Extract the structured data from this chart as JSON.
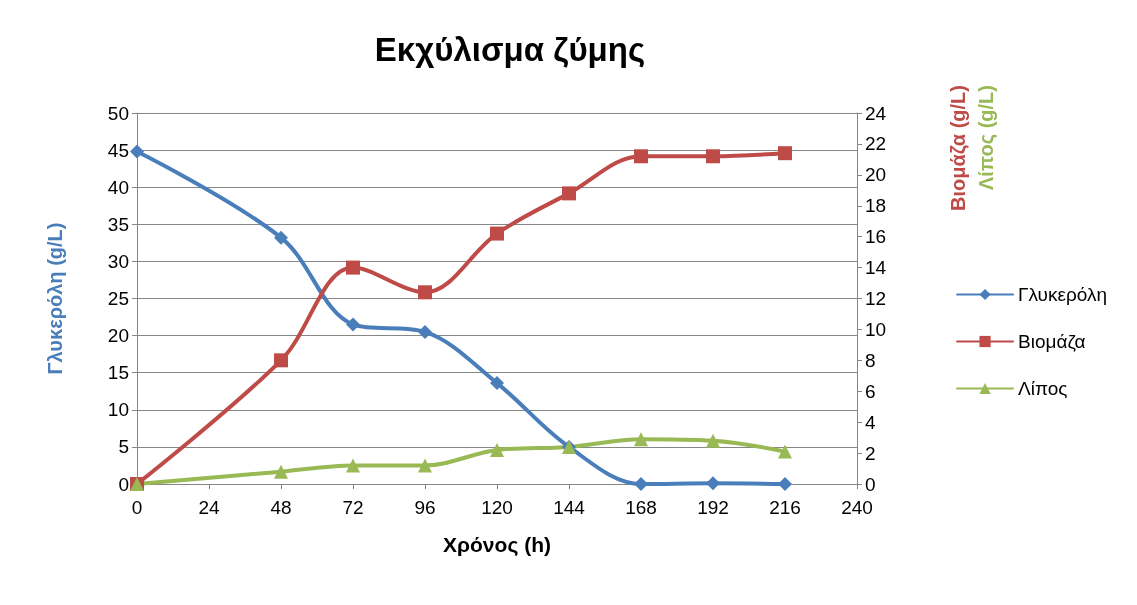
{
  "chart_data": {
    "type": "line",
    "title": "Εκχύλισμα ζύμης",
    "xlabel": "Χρόνος (h)",
    "ylabel": "Γλυκερόλη (g/L)",
    "y2label": "Βιομάζα (g/L)",
    "annotations": [
      "Λίπος (g/L)"
    ],
    "x": [
      0,
      48,
      72,
      96,
      120,
      144,
      168,
      192,
      216
    ],
    "xlim": [
      0,
      240
    ],
    "xticks": [
      0,
      24,
      48,
      72,
      96,
      120,
      144,
      168,
      192,
      216,
      240
    ],
    "ylim": [
      0,
      50
    ],
    "yticks": [
      0,
      5,
      10,
      15,
      20,
      25,
      30,
      35,
      40,
      45,
      50
    ],
    "y2lim": [
      0,
      24
    ],
    "y2ticks": [
      0,
      2,
      4,
      6,
      8,
      10,
      12,
      14,
      16,
      18,
      20,
      22,
      24
    ],
    "grid": "y",
    "legend": "right",
    "line_style": "solid",
    "series": [
      {
        "name": "Γλυκερόλη",
        "color": "#4a7ebb",
        "marker": "diamond",
        "values": [
          44.8,
          33.2,
          21.5,
          20.5,
          13.6,
          5.0,
          0,
          0.1,
          0
        ]
      },
      {
        "name": "Βιομάζα",
        "color": "#be4b48",
        "marker": "square",
        "axis": "y2",
        "values": [
          0,
          8.0,
          14.0,
          12.4,
          16.2,
          18.8,
          21.2,
          21.2,
          21.4
        ]
      },
      {
        "name": "Λίπος",
        "color": "#98b954",
        "marker": "triangle",
        "axis": "y2",
        "values": [
          0,
          0.8,
          1.2,
          1.2,
          2.2,
          2.4,
          2.9,
          2.8,
          2.1
        ]
      }
    ]
  }
}
